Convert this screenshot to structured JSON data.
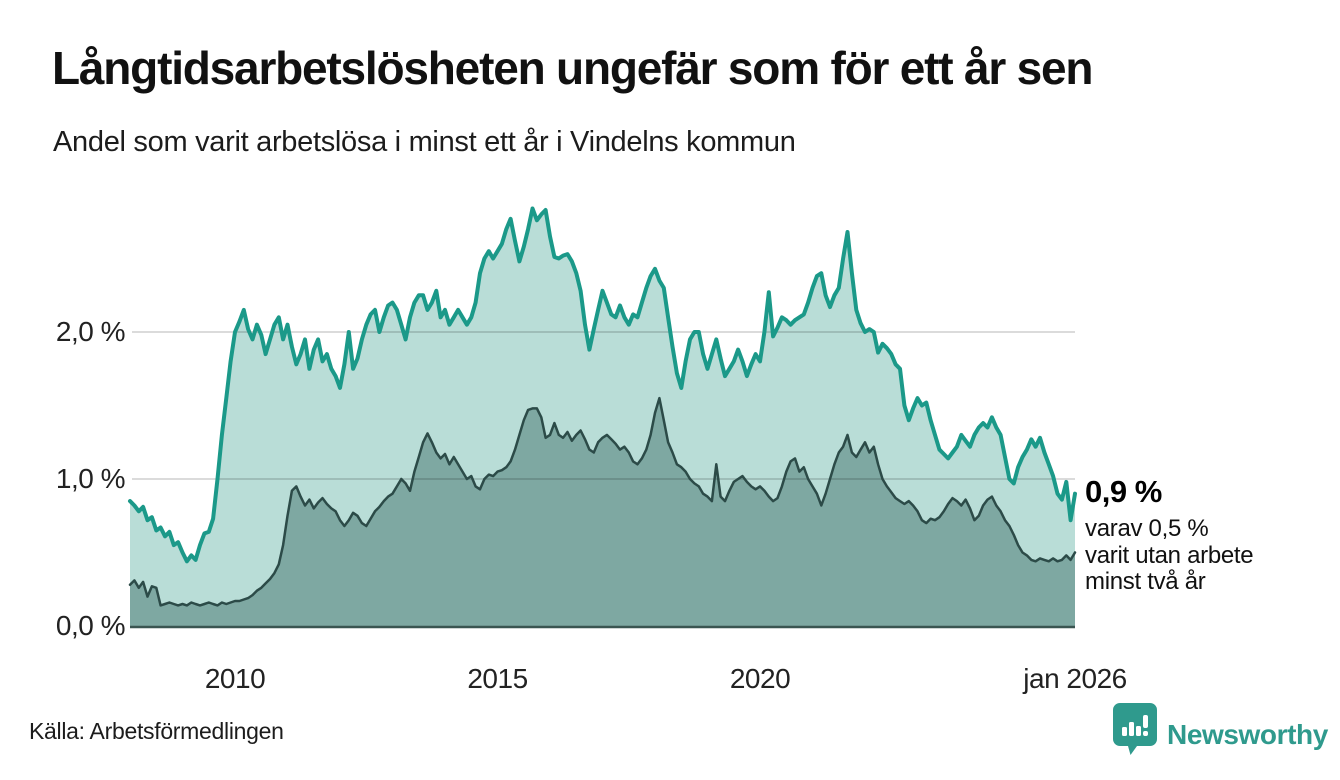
{
  "header": {
    "title": "Långtidsarbetslösheten ungefär som för ett år sen",
    "subtitle": "Andel som varit arbetslösa i minst ett år i Vindelns kommun"
  },
  "chart_data": {
    "type": "area",
    "title": "Långtidsarbetslösheten ungefär som för ett år sen",
    "subtitle": "Andel som varit arbetslösa i minst ett år i Vindelns kommun",
    "x_start": "2008-01",
    "x_end": "2026-01",
    "x_frequency": "monthly",
    "ylim": [
      0,
      2.9
    ],
    "grid": "horizontal",
    "grid_color": "rgba(0,0,0,0.14)",
    "axis_color": "#3a5551",
    "y_ticks": [
      {
        "value": 0,
        "label": "0,0 %"
      },
      {
        "value": 1,
        "label": "1,0 %"
      },
      {
        "value": 2,
        "label": "2,0 %"
      }
    ],
    "x_ticks": [
      {
        "label": "2010",
        "month_index": 24
      },
      {
        "label": "2015",
        "month_index": 84
      },
      {
        "label": "2020",
        "month_index": 144
      },
      {
        "label": "jan 2026",
        "month_index": 216
      }
    ],
    "series": [
      {
        "name": "Arbetslösa minst ett år",
        "line_color": "#1b9989",
        "line_width": 4,
        "fill_color": "#b9ddd7",
        "last_value": 0.9,
        "values": [
          0.85,
          0.82,
          0.78,
          0.81,
          0.72,
          0.74,
          0.65,
          0.67,
          0.61,
          0.64,
          0.55,
          0.57,
          0.5,
          0.44,
          0.48,
          0.45,
          0.55,
          0.63,
          0.64,
          0.73,
          1.0,
          1.3,
          1.55,
          1.8,
          2.0,
          2.07,
          2.15,
          2.02,
          1.95,
          2.05,
          1.98,
          1.85,
          1.95,
          2.05,
          2.1,
          1.95,
          2.05,
          1.9,
          1.78,
          1.85,
          1.95,
          1.75,
          1.88,
          1.95,
          1.8,
          1.85,
          1.75,
          1.7,
          1.62,
          1.78,
          2.0,
          1.75,
          1.82,
          1.95,
          2.05,
          2.12,
          2.15,
          2.0,
          2.1,
          2.18,
          2.2,
          2.15,
          2.05,
          1.95,
          2.1,
          2.2,
          2.25,
          2.25,
          2.15,
          2.2,
          2.28,
          2.1,
          2.15,
          2.05,
          2.1,
          2.15,
          2.1,
          2.05,
          2.1,
          2.2,
          2.4,
          2.5,
          2.55,
          2.5,
          2.55,
          2.6,
          2.7,
          2.77,
          2.62,
          2.48,
          2.58,
          2.7,
          2.84,
          2.76,
          2.8,
          2.83,
          2.65,
          2.51,
          2.5,
          2.52,
          2.53,
          2.48,
          2.4,
          2.28,
          2.05,
          1.88,
          2.02,
          2.15,
          2.28,
          2.2,
          2.12,
          2.1,
          2.18,
          2.1,
          2.05,
          2.12,
          2.1,
          2.2,
          2.3,
          2.38,
          2.43,
          2.35,
          2.3,
          2.1,
          1.9,
          1.72,
          1.62,
          1.8,
          1.95,
          2.0,
          2.0,
          1.85,
          1.75,
          1.85,
          1.95,
          1.82,
          1.7,
          1.75,
          1.8,
          1.88,
          1.8,
          1.7,
          1.78,
          1.85,
          1.8,
          2.0,
          2.27,
          1.97,
          2.03,
          2.1,
          2.08,
          2.05,
          2.08,
          2.1,
          2.12,
          2.2,
          2.3,
          2.38,
          2.4,
          2.25,
          2.17,
          2.25,
          2.3,
          2.5,
          2.68,
          2.4,
          2.15,
          2.06,
          2.0,
          2.02,
          2.0,
          1.86,
          1.92,
          1.89,
          1.85,
          1.78,
          1.75,
          1.5,
          1.4,
          1.48,
          1.55,
          1.5,
          1.52,
          1.4,
          1.3,
          1.2,
          1.17,
          1.14,
          1.18,
          1.22,
          1.3,
          1.26,
          1.22,
          1.3,
          1.35,
          1.38,
          1.35,
          1.42,
          1.35,
          1.3,
          1.15,
          1.0,
          0.97,
          1.08,
          1.15,
          1.2,
          1.27,
          1.22,
          1.28,
          1.18,
          1.1,
          1.02,
          0.9,
          0.86,
          0.98,
          0.72,
          0.9
        ]
      },
      {
        "name": "Arbetslösa minst två år",
        "line_color": "#2c4b48",
        "line_width": 2.5,
        "fill_color": "#7ea8a2",
        "last_value": 0.5,
        "values": [
          0.28,
          0.31,
          0.26,
          0.3,
          0.2,
          0.27,
          0.26,
          0.14,
          0.15,
          0.16,
          0.15,
          0.14,
          0.15,
          0.14,
          0.16,
          0.15,
          0.14,
          0.15,
          0.16,
          0.15,
          0.14,
          0.16,
          0.15,
          0.16,
          0.17,
          0.17,
          0.18,
          0.19,
          0.21,
          0.24,
          0.26,
          0.29,
          0.32,
          0.36,
          0.42,
          0.55,
          0.75,
          0.92,
          0.95,
          0.88,
          0.82,
          0.86,
          0.8,
          0.84,
          0.87,
          0.83,
          0.8,
          0.78,
          0.72,
          0.68,
          0.72,
          0.77,
          0.75,
          0.7,
          0.68,
          0.73,
          0.78,
          0.81,
          0.85,
          0.88,
          0.9,
          0.95,
          1.0,
          0.97,
          0.92,
          1.05,
          1.15,
          1.25,
          1.31,
          1.25,
          1.18,
          1.14,
          1.17,
          1.1,
          1.15,
          1.1,
          1.05,
          1.0,
          1.02,
          0.95,
          0.93,
          1.0,
          1.03,
          1.02,
          1.05,
          1.06,
          1.08,
          1.12,
          1.2,
          1.3,
          1.4,
          1.47,
          1.48,
          1.48,
          1.42,
          1.28,
          1.3,
          1.38,
          1.3,
          1.28,
          1.32,
          1.26,
          1.3,
          1.33,
          1.27,
          1.2,
          1.18,
          1.25,
          1.28,
          1.3,
          1.27,
          1.24,
          1.2,
          1.22,
          1.18,
          1.12,
          1.1,
          1.14,
          1.2,
          1.3,
          1.45,
          1.55,
          1.4,
          1.25,
          1.18,
          1.1,
          1.08,
          1.05,
          1.0,
          0.97,
          0.95,
          0.9,
          0.88,
          0.85,
          1.1,
          0.88,
          0.85,
          0.92,
          0.98,
          1.0,
          1.02,
          0.98,
          0.95,
          0.93,
          0.95,
          0.92,
          0.88,
          0.85,
          0.87,
          0.95,
          1.05,
          1.12,
          1.14,
          1.05,
          1.08,
          1.0,
          0.95,
          0.9,
          0.82,
          0.9,
          1.0,
          1.1,
          1.18,
          1.22,
          1.3,
          1.18,
          1.15,
          1.2,
          1.25,
          1.18,
          1.22,
          1.1,
          1.0,
          0.95,
          0.91,
          0.87,
          0.85,
          0.83,
          0.85,
          0.82,
          0.78,
          0.72,
          0.7,
          0.73,
          0.72,
          0.74,
          0.78,
          0.83,
          0.87,
          0.85,
          0.82,
          0.86,
          0.8,
          0.72,
          0.75,
          0.82,
          0.86,
          0.88,
          0.82,
          0.78,
          0.72,
          0.68,
          0.62,
          0.55,
          0.5,
          0.48,
          0.45,
          0.44,
          0.46,
          0.45,
          0.44,
          0.46,
          0.44,
          0.45,
          0.48,
          0.45,
          0.5
        ]
      }
    ]
  },
  "annotation": {
    "value_label": "0,9 %",
    "lines": [
      "varav 0,5 %",
      "varit utan arbete",
      "minst två år"
    ]
  },
  "source": "Källa: Arbetsförmedlingen",
  "branding": {
    "name": "Newsworthy",
    "color": "#2f9a8d"
  }
}
